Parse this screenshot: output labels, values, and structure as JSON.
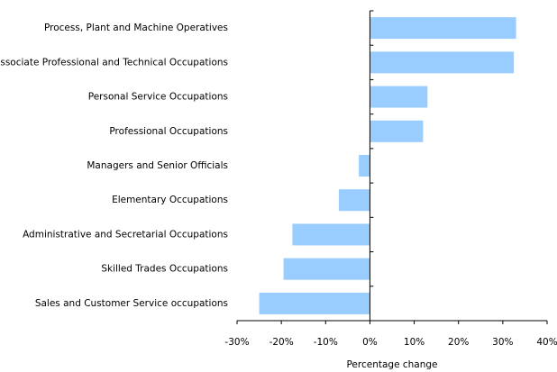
{
  "chart_data": {
    "type": "hbar",
    "categories": [
      "Process, Plant and Machine Operatives",
      "Associate Professional and Technical Occupations",
      "Personal Service Occupations",
      "Professional Occupations",
      "Managers and Senior Officials",
      "Elementary Occupations",
      "Administrative and Secretarial Occupations",
      "Skilled Trades Occupations",
      "Sales and Customer Service occupations"
    ],
    "values": [
      33,
      32.5,
      13,
      12,
      -2.5,
      -7,
      -17.5,
      -19.5,
      -25
    ],
    "color": "#99ccff",
    "xlabel": "Percentage change",
    "xlim": [
      -30,
      40
    ],
    "xticks": [
      {
        "value": -30,
        "label": "-30%"
      },
      {
        "value": -20,
        "label": "-20%"
      },
      {
        "value": -10,
        "label": "-10%"
      },
      {
        "value": 0,
        "label": "0%"
      },
      {
        "value": 10,
        "label": "10%"
      },
      {
        "value": 20,
        "label": "20%"
      },
      {
        "value": 30,
        "label": "30%"
      },
      {
        "value": 40,
        "label": "40%"
      }
    ],
    "grid": false
  }
}
